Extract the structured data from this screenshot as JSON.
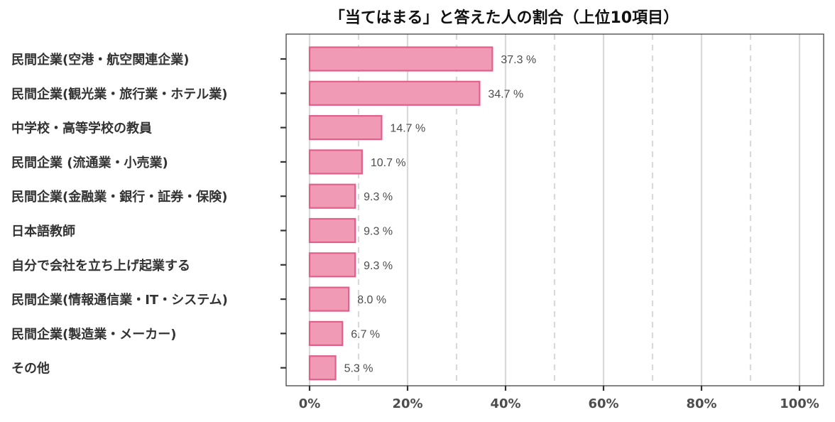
{
  "chart_data": {
    "type": "bar",
    "orientation": "horizontal",
    "title": "「当てはまる」と答えた人の割合（上位10項目）",
    "categories": [
      "民間企業(空港・航空関連企業)",
      "民間企業(観光業・旅行業・ホテル業)",
      "中学校・高等学校の教員",
      "民間企業 (流通業・小売業)",
      "民間企業(金融業・銀行・証券・保険)",
      "日本語教師",
      "自分で会社を立ち上げ起業する",
      "民間企業(情報通信業・IT・システム)",
      "民間企業(製造業・メーカー)",
      "その他"
    ],
    "values": [
      37.3,
      34.7,
      14.7,
      10.7,
      9.3,
      9.3,
      9.3,
      8.0,
      6.7,
      5.3
    ],
    "data_labels": [
      "37.3 %",
      "34.7 %",
      "14.7 %",
      "10.7 %",
      "9.3 %",
      "9.3 %",
      "9.3 %",
      "8.0 %",
      "6.7 %",
      "5.3 %"
    ],
    "xlim": [
      0,
      100
    ],
    "x_ticks": [
      0,
      20,
      40,
      60,
      80,
      100
    ],
    "x_tick_labels": [
      "0%",
      "20%",
      "40%",
      "60%",
      "80%",
      "100%"
    ],
    "minor_ticks": [
      10,
      30,
      50,
      70,
      90
    ],
    "grid": true,
    "legend": "none",
    "colors": {
      "bar_fill": "#f09ab5",
      "bar_stroke": "#e0608a",
      "major_grid": "#d9d9d9",
      "minor_grid": "#d9d9d9",
      "panel_border": "#333333"
    }
  }
}
